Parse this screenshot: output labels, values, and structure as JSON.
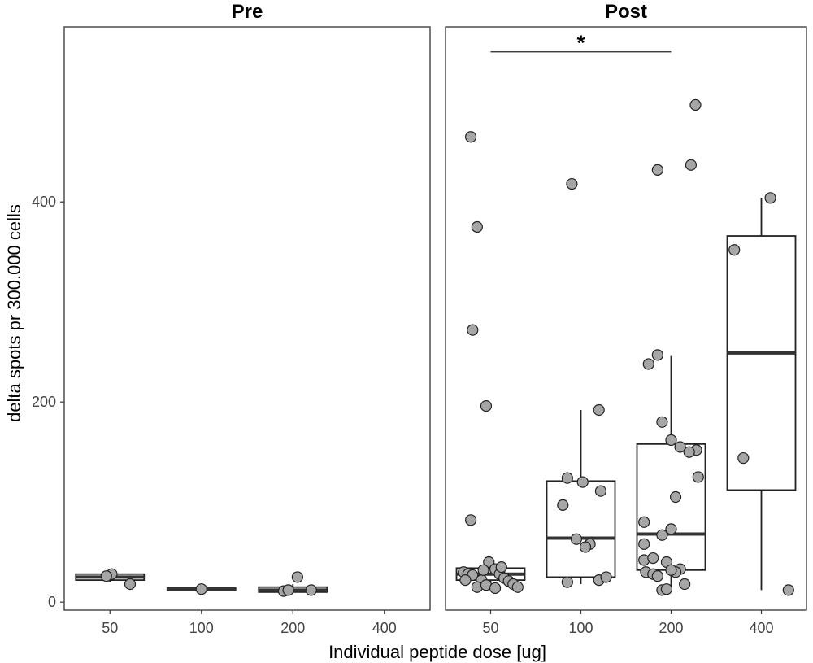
{
  "chart_data": {
    "type": "boxplot",
    "xlabel": "Individual peptide dose [ug]",
    "ylabel": "delta spots pr 300.000 cells",
    "ylim": [
      -8,
      575
    ],
    "yticks": [
      0,
      200,
      400
    ],
    "categories": [
      "50",
      "100",
      "200",
      "400"
    ],
    "panels": [
      {
        "title": "Pre",
        "groups": [
          {
            "category": "50",
            "box": {
              "q1": 22,
              "median": 25,
              "q3": 28,
              "lower": 20,
              "upper": 30
            },
            "points": [
              [
                0.02,
                28
              ],
              [
                -0.04,
                26
              ],
              [
                0.22,
                18
              ]
            ]
          },
          {
            "category": "100",
            "box": {
              "q1": 12,
              "median": 13,
              "q3": 14,
              "lower": 12,
              "upper": 14
            },
            "points": [
              [
                0.0,
                13
              ]
            ]
          },
          {
            "category": "200",
            "box": {
              "q1": 10,
              "median": 12,
              "q3": 15,
              "lower": 10,
              "upper": 18
            },
            "points": [
              [
                -0.1,
                11
              ],
              [
                -0.05,
                12
              ],
              [
                0.05,
                25
              ],
              [
                0.2,
                12
              ]
            ]
          },
          {
            "category": "400",
            "box": null,
            "points": []
          }
        ]
      },
      {
        "title": "Post",
        "significance": {
          "from": "50",
          "to": "200",
          "label": "*",
          "y": 550
        },
        "groups": [
          {
            "category": "50",
            "box": {
              "q1": 22,
              "median": 28,
              "q3": 34,
              "lower": 12,
              "upper": 40
            },
            "points": [
              [
                -0.22,
                465
              ],
              [
                -0.15,
                375
              ],
              [
                -0.2,
                272
              ],
              [
                -0.05,
                196
              ],
              [
                -0.22,
                82
              ],
              [
                -0.3,
                30
              ],
              [
                -0.25,
                28
              ],
              [
                -0.2,
                27
              ],
              [
                -0.1,
                22
              ],
              [
                -0.02,
                40
              ],
              [
                0.05,
                33
              ],
              [
                0.1,
                28
              ],
              [
                -0.15,
                15
              ],
              [
                -0.05,
                17
              ],
              [
                0.05,
                14
              ],
              [
                0.15,
                24
              ],
              [
                0.2,
                21
              ],
              [
                0.25,
                18
              ],
              [
                0.3,
                15
              ],
              [
                -0.28,
                22
              ],
              [
                0.12,
                35
              ],
              [
                -0.08,
                32
              ]
            ]
          },
          {
            "category": "100",
            "box": {
              "q1": 25,
              "median": 64,
              "q3": 121,
              "lower": 18,
              "upper": 192
            },
            "points": [
              [
                -0.1,
                418
              ],
              [
                0.2,
                192
              ],
              [
                -0.15,
                124
              ],
              [
                0.02,
                120
              ],
              [
                0.22,
                111
              ],
              [
                -0.2,
                97
              ],
              [
                -0.05,
                63
              ],
              [
                0.1,
                58
              ],
              [
                0.05,
                55
              ],
              [
                -0.15,
                20
              ],
              [
                0.2,
                22
              ],
              [
                0.28,
                25
              ]
            ]
          },
          {
            "category": "200",
            "box": {
              "q1": 32,
              "median": 68,
              "q3": 158,
              "lower": 10,
              "upper": 246
            },
            "points": [
              [
                -0.15,
                432
              ],
              [
                0.22,
                437
              ],
              [
                0.27,
                497
              ],
              [
                -0.15,
                247
              ],
              [
                -0.25,
                238
              ],
              [
                -0.1,
                180
              ],
              [
                0.0,
                162
              ],
              [
                0.1,
                155
              ],
              [
                0.28,
                152
              ],
              [
                0.2,
                150
              ],
              [
                0.3,
                125
              ],
              [
                0.05,
                105
              ],
              [
                -0.3,
                80
              ],
              [
                0.0,
                73
              ],
              [
                -0.1,
                67
              ],
              [
                -0.3,
                58
              ],
              [
                -0.3,
                42
              ],
              [
                -0.2,
                44
              ],
              [
                -0.05,
                40
              ],
              [
                0.1,
                33
              ],
              [
                -0.28,
                30
              ],
              [
                -0.2,
                28
              ],
              [
                -0.15,
                26
              ],
              [
                0.05,
                30
              ],
              [
                0.15,
                18
              ],
              [
                -0.1,
                12
              ],
              [
                -0.05,
                13
              ],
              [
                0.0,
                32
              ]
            ]
          },
          {
            "category": "400",
            "box": {
              "q1": 112,
              "median": 249,
              "q3": 366,
              "lower": 12,
              "upper": 404
            },
            "points": [
              [
                0.1,
                404
              ],
              [
                -0.3,
                352
              ],
              [
                -0.2,
                144
              ],
              [
                0.3,
                12
              ]
            ]
          }
        ]
      }
    ]
  }
}
